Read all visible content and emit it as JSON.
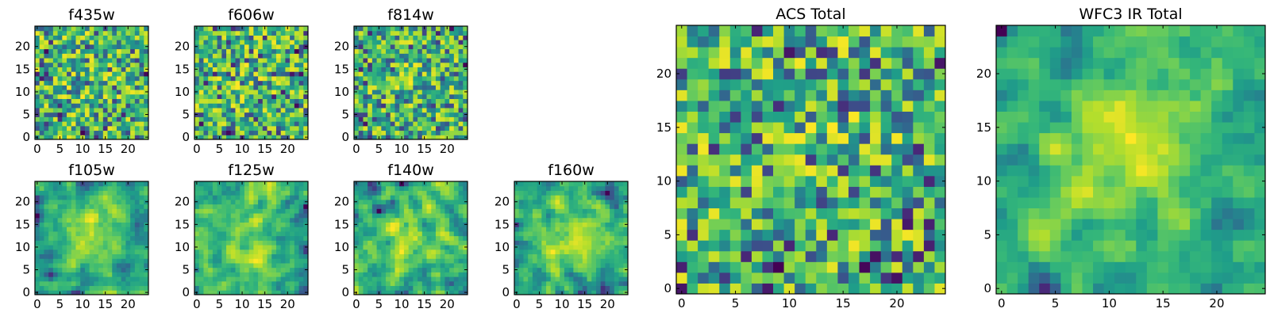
{
  "chart_data": {
    "type": "heatmap",
    "colormap": "viridis",
    "panels": [
      {
        "id": "f435w",
        "title": "f435w",
        "grid_size": 25,
        "noise": "pixel",
        "blob_strength": 0.05,
        "xticks": [
          0,
          5,
          10,
          15,
          20
        ],
        "yticks": [
          0,
          5,
          10,
          15,
          20
        ],
        "xlim": [
          0,
          24
        ],
        "ylim": [
          0,
          24
        ]
      },
      {
        "id": "f606w",
        "title": "f606w",
        "grid_size": 25,
        "noise": "pixel",
        "blob_strength": 0.05,
        "xticks": [
          0,
          5,
          10,
          15,
          20
        ],
        "yticks": [
          0,
          5,
          10,
          15,
          20
        ],
        "xlim": [
          0,
          24
        ],
        "ylim": [
          0,
          24
        ]
      },
      {
        "id": "f814w",
        "title": "f814w",
        "grid_size": 25,
        "noise": "pixel",
        "blob_strength": 0.08,
        "xticks": [
          0,
          5,
          10,
          15,
          20
        ],
        "yticks": [
          0,
          5,
          10,
          15,
          20
        ],
        "xlim": [
          0,
          24
        ],
        "ylim": [
          0,
          24
        ]
      },
      {
        "id": "f105w",
        "title": "f105w",
        "grid_size": 25,
        "noise": "smooth",
        "blob_strength": 0.35,
        "xticks": [
          0,
          5,
          10,
          15,
          20
        ],
        "yticks": [
          0,
          5,
          10,
          15,
          20
        ],
        "xlim": [
          0,
          24
        ],
        "ylim": [
          0,
          24
        ]
      },
      {
        "id": "f125w",
        "title": "f125w",
        "grid_size": 25,
        "noise": "smooth",
        "blob_strength": 0.2,
        "xticks": [
          0,
          5,
          10,
          15,
          20
        ],
        "yticks": [
          0,
          5,
          10,
          15,
          20
        ],
        "xlim": [
          0,
          24
        ],
        "ylim": [
          0,
          24
        ]
      },
      {
        "id": "f140w",
        "title": "f140w",
        "grid_size": 25,
        "noise": "smooth",
        "blob_strength": 0.15,
        "xticks": [
          0,
          5,
          10,
          15,
          20
        ],
        "yticks": [
          0,
          5,
          10,
          15,
          20
        ],
        "xlim": [
          0,
          24
        ],
        "ylim": [
          0,
          24
        ]
      },
      {
        "id": "f160w",
        "title": "f160w",
        "grid_size": 25,
        "noise": "smooth",
        "blob_strength": 0.3,
        "xticks": [
          0,
          5,
          10,
          15,
          20
        ],
        "yticks": [
          0,
          5,
          10,
          15,
          20
        ],
        "xlim": [
          0,
          24
        ],
        "ylim": [
          0,
          24
        ]
      },
      {
        "id": "acs-total",
        "title": "ACS Total",
        "grid_size": 25,
        "noise": "pixel",
        "blob_strength": 0.05,
        "xticks": [
          0,
          5,
          10,
          15,
          20
        ],
        "yticks": [
          0,
          5,
          10,
          15,
          20
        ],
        "xlim": [
          0,
          24
        ],
        "ylim": [
          0,
          24
        ]
      },
      {
        "id": "wfc3-ir-total",
        "title": "WFC3 IR Total",
        "grid_size": 25,
        "noise": "smooth",
        "blob_strength": 0.45,
        "xticks": [
          0,
          5,
          10,
          15,
          20
        ],
        "yticks": [
          0,
          5,
          10,
          15,
          20
        ],
        "xlim": [
          0,
          24
        ],
        "ylim": [
          0,
          24
        ]
      }
    ]
  }
}
